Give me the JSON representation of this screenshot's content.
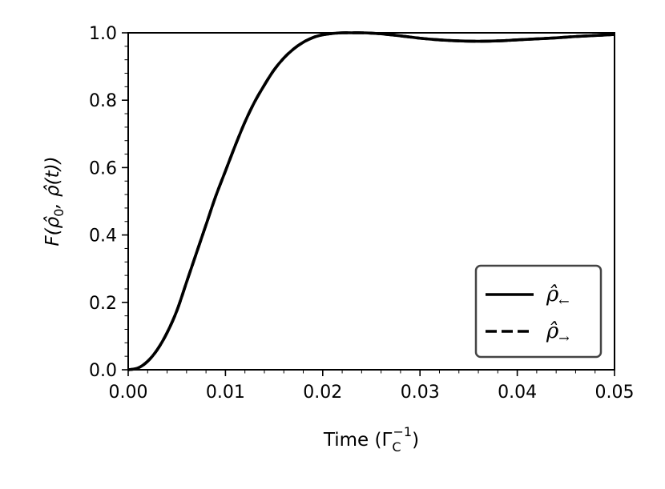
{
  "chart_data": {
    "type": "line",
    "title": "",
    "xlabel": {
      "main": "Time (Γ",
      "sub": "C",
      "sup": "−1",
      "close": ")"
    },
    "ylabel": {
      "text": "F(ρ̂",
      "sub": "0",
      "rest": ", ρ̂(t))"
    },
    "xlim": [
      0.0,
      0.05
    ],
    "ylim": [
      0.0,
      1.0
    ],
    "x_ticks": [
      0.0,
      0.01,
      0.02,
      0.03,
      0.04,
      0.05
    ],
    "x_tick_labels": [
      "0.00",
      "0.01",
      "0.02",
      "0.03",
      "0.04",
      "0.05"
    ],
    "y_ticks": [
      0.0,
      0.2,
      0.4,
      0.6,
      0.8,
      1.0
    ],
    "y_tick_labels": [
      "0.0",
      "0.2",
      "0.4",
      "0.6",
      "0.8",
      "1.0"
    ],
    "grid": false,
    "legend": {
      "placement": "lower-right",
      "entries": [
        {
          "glyph": "ρ̂",
          "sub": "←",
          "style": "solid"
        },
        {
          "glyph": "ρ̂",
          "sub": "→",
          "style": "dashed"
        }
      ]
    },
    "series": [
      {
        "style": "solid",
        "color": "#000000",
        "x": [
          0.0,
          0.001,
          0.002,
          0.003,
          0.004,
          0.005,
          0.006,
          0.007,
          0.008,
          0.009,
          0.01,
          0.011,
          0.012,
          0.013,
          0.014,
          0.015,
          0.016,
          0.017,
          0.018,
          0.019,
          0.02,
          0.021,
          0.022,
          0.023,
          0.024,
          0.025,
          0.026,
          0.028,
          0.03,
          0.032,
          0.034,
          0.036,
          0.038,
          0.04,
          0.042,
          0.044,
          0.046,
          0.048,
          0.05
        ],
        "y": [
          0.0,
          0.005,
          0.025,
          0.06,
          0.11,
          0.175,
          0.26,
          0.345,
          0.43,
          0.515,
          0.59,
          0.665,
          0.735,
          0.795,
          0.845,
          0.89,
          0.925,
          0.952,
          0.972,
          0.986,
          0.994,
          0.998,
          1.0,
          1.0,
          1.0,
          0.999,
          0.997,
          0.991,
          0.984,
          0.979,
          0.976,
          0.975,
          0.976,
          0.979,
          0.982,
          0.985,
          0.989,
          0.992,
          0.995
        ]
      },
      {
        "style": "dashed",
        "color": "#000000",
        "x": [
          0.0,
          0.001,
          0.002,
          0.003,
          0.004,
          0.005,
          0.006,
          0.007,
          0.008,
          0.009,
          0.01,
          0.011,
          0.012,
          0.013,
          0.014,
          0.015,
          0.016,
          0.017,
          0.018,
          0.019,
          0.02,
          0.021,
          0.022,
          0.023,
          0.024,
          0.025,
          0.026,
          0.028,
          0.03,
          0.032,
          0.034,
          0.036,
          0.038,
          0.04,
          0.042,
          0.044,
          0.046,
          0.048,
          0.05
        ],
        "y": [
          0.0,
          0.005,
          0.025,
          0.06,
          0.11,
          0.175,
          0.26,
          0.345,
          0.43,
          0.515,
          0.59,
          0.665,
          0.735,
          0.795,
          0.845,
          0.89,
          0.925,
          0.952,
          0.972,
          0.986,
          0.994,
          0.998,
          1.0,
          1.0,
          1.0,
          0.999,
          0.997,
          0.991,
          0.984,
          0.979,
          0.976,
          0.975,
          0.976,
          0.979,
          0.982,
          0.985,
          0.989,
          0.992,
          0.995
        ]
      }
    ]
  }
}
